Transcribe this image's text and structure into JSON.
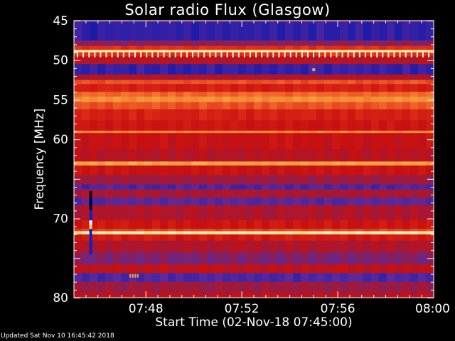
{
  "chart_data": {
    "type": "heatmap",
    "title": "Solar radio Flux (Glasgow)",
    "xlabel": "Start Time (02-Nov-18 07:45:00)",
    "ylabel": "Frequency [MHz]",
    "x_ticks": [
      "07:48",
      "07:52",
      "07:56",
      "08:00"
    ],
    "x_tick_minutes": [
      3,
      7,
      11,
      15
    ],
    "xlim_minutes": [
      0,
      15
    ],
    "y_ticks": [
      45,
      50,
      55,
      60,
      70,
      80
    ],
    "ylim": [
      45,
      80
    ],
    "colormap": [
      "#000000",
      "#1a1aa8",
      "#5a2aa0",
      "#9b1a40",
      "#c81010",
      "#e03018",
      "#f26a2a",
      "#f6a040",
      "#ffe080",
      "#ffffff"
    ],
    "frequency_bands": [
      {
        "from": 45.0,
        "to": 45.2,
        "intensity": 0.25
      },
      {
        "from": 45.2,
        "to": 47.5,
        "intensity": 0.15
      },
      {
        "from": 47.5,
        "to": 48.2,
        "intensity": 0.3
      },
      {
        "from": 48.2,
        "to": 48.7,
        "intensity": 0.55
      },
      {
        "from": 48.7,
        "to": 49.0,
        "intensity": 0.92
      },
      {
        "from": 49.0,
        "to": 49.5,
        "intensity": 0.55
      },
      {
        "from": 49.5,
        "to": 50.5,
        "intensity": 0.4
      },
      {
        "from": 50.5,
        "to": 51.8,
        "intensity": 0.16
      },
      {
        "from": 51.8,
        "to": 52.5,
        "intensity": 0.38
      },
      {
        "from": 52.5,
        "to": 53.0,
        "intensity": 0.62
      },
      {
        "from": 53.0,
        "to": 54.0,
        "intensity": 0.5
      },
      {
        "from": 54.0,
        "to": 54.6,
        "intensity": 0.66
      },
      {
        "from": 54.6,
        "to": 55.3,
        "intensity": 0.74
      },
      {
        "from": 55.3,
        "to": 56.2,
        "intensity": 0.62
      },
      {
        "from": 56.2,
        "to": 57.6,
        "intensity": 0.5
      },
      {
        "from": 57.6,
        "to": 58.9,
        "intensity": 0.46
      },
      {
        "from": 58.9,
        "to": 59.2,
        "intensity": 0.72
      },
      {
        "from": 59.2,
        "to": 61.2,
        "intensity": 0.44
      },
      {
        "from": 61.2,
        "to": 62.8,
        "intensity": 0.4
      },
      {
        "from": 62.8,
        "to": 63.3,
        "intensity": 0.78
      },
      {
        "from": 63.3,
        "to": 64.5,
        "intensity": 0.45
      },
      {
        "from": 64.5,
        "to": 65.7,
        "intensity": 0.34
      },
      {
        "from": 65.7,
        "to": 66.3,
        "intensity": 0.2
      },
      {
        "from": 66.3,
        "to": 67.4,
        "intensity": 0.36
      },
      {
        "from": 67.4,
        "to": 68.3,
        "intensity": 0.22
      },
      {
        "from": 68.3,
        "to": 70.2,
        "intensity": 0.38
      },
      {
        "from": 70.2,
        "to": 71.3,
        "intensity": 0.46
      },
      {
        "from": 71.3,
        "to": 71.6,
        "intensity": 0.6
      },
      {
        "from": 71.6,
        "to": 72.0,
        "intensity": 0.92
      },
      {
        "from": 72.0,
        "to": 72.8,
        "intensity": 0.48
      },
      {
        "from": 72.8,
        "to": 74.3,
        "intensity": 0.38
      },
      {
        "from": 74.3,
        "to": 75.8,
        "intensity": 0.28
      },
      {
        "from": 75.8,
        "to": 76.9,
        "intensity": 0.42
      },
      {
        "from": 76.9,
        "to": 78.0,
        "intensity": 0.2
      },
      {
        "from": 78.0,
        "to": 79.4,
        "intensity": 0.34
      },
      {
        "from": 79.4,
        "to": 80.0,
        "intensity": 0.42
      }
    ],
    "features": [
      {
        "kind": "dotted-line",
        "frequency": 49.0,
        "color": "#fff6c8"
      },
      {
        "kind": "vertical-burst",
        "minute": 0.7,
        "from": 66.5,
        "to": 74.5
      },
      {
        "kind": "point",
        "minute": 10.0,
        "frequency": 51.2,
        "color": "#f6a040"
      },
      {
        "kind": "point-cluster",
        "minute": 2.5,
        "frequency": 77.2,
        "color": "#f6a040"
      }
    ]
  },
  "footer": {
    "updated": "Updated Sat Nov 10 16:45:42 2018"
  }
}
